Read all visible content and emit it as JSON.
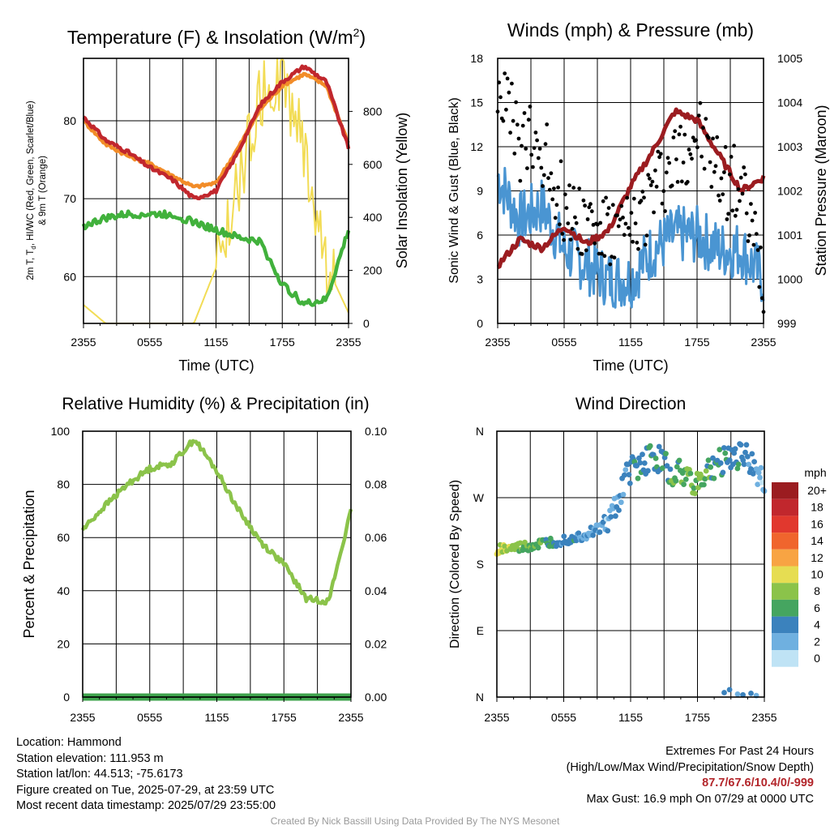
{
  "panels": {
    "temp": {
      "title_main": "Temperature (F) & Insolation (W/m",
      "title_sup": "2",
      "title_end": ")",
      "xlabel": "Time (UTC)",
      "ylabel_left_line1": "2m T, T",
      "ylabel_left_sub": "d",
      "ylabel_left_line1_end": ", HI/WC (Red, Green, Scarlet/Blue)",
      "ylabel_left_line2": "& 9m T (Orange)",
      "ylabel_right": "Solar Insolation (Yellow)",
      "ylim": [
        54,
        88
      ],
      "yticks": [
        "60",
        "70",
        "80"
      ],
      "y2lim": [
        0,
        1000
      ],
      "y2ticks": [
        "0",
        "200",
        "400",
        "600",
        "800"
      ]
    },
    "wind": {
      "title": "Winds (mph) & Pressure (mb)",
      "xlabel": "Time (UTC)",
      "ylabel_left": "Sonic Wind & Gust (Blue, Black)",
      "ylabel_right": "Station Pressure (Maroon)",
      "ylim": [
        0,
        18
      ],
      "yticks": [
        "0",
        "3",
        "6",
        "9",
        "12",
        "15",
        "18"
      ],
      "y2lim": [
        999,
        1005
      ],
      "y2ticks": [
        "999",
        "1000",
        "1001",
        "1002",
        "1003",
        "1004",
        "1005"
      ]
    },
    "rh": {
      "title": "Relative Humidity (%) & Precipitation (in)",
      "ylabel_left": "Percent & Precipitation",
      "ylim": [
        0,
        100
      ],
      "yticks": [
        "0",
        "20",
        "40",
        "60",
        "80",
        "100"
      ],
      "y2ticks": [
        "0.00",
        "0.02",
        "0.04",
        "0.06",
        "0.08",
        "0.10"
      ]
    },
    "wdir": {
      "title": "Wind Direction",
      "ylabel_left": "Direction (Colored By Speed)",
      "yticks": [
        "N",
        "E",
        "S",
        "W",
        "N"
      ],
      "legend_title": "mph",
      "legend_labels": [
        "20+",
        "18",
        "16",
        "14",
        "12",
        "10",
        "8",
        "6",
        "4",
        "2",
        "0"
      ],
      "legend_colors": [
        "#9b1c20",
        "#c1272d",
        "#e1382e",
        "#f0652d",
        "#f8a443",
        "#e6dd52",
        "#8bc34a",
        "#45a560",
        "#3b82bd",
        "#6fb0e0",
        "#bfe3f5"
      ]
    }
  },
  "xticks": [
    "2355",
    "0555",
    "1155",
    "1755",
    "2355"
  ],
  "chart_data": [
    {
      "type": "line",
      "title": "Temperature (F) & Insolation (W/m2)",
      "xlabel": "Time (UTC)",
      "x": [
        "2355",
        "0155",
        "0355",
        "0555",
        "0755",
        "0955",
        "1155",
        "1355",
        "1555",
        "1755",
        "1955",
        "2155",
        "2355"
      ],
      "series": [
        {
          "name": "2m T (Red)",
          "axis": "left",
          "color": "#c1272d",
          "values": [
            80.5,
            77.5,
            76,
            74,
            72.5,
            70,
            71,
            76,
            82,
            85,
            87,
            85,
            76.5
          ]
        },
        {
          "name": "9m T (Orange)",
          "axis": "left",
          "color": "#f28c28",
          "values": [
            80,
            77,
            75.5,
            74.5,
            73,
            71.5,
            72,
            76.5,
            81.5,
            84.5,
            86,
            84.5,
            77
          ]
        },
        {
          "name": "Td (Green)",
          "axis": "left",
          "color": "#41b13c",
          "values": [
            66.5,
            67.5,
            68,
            68,
            68,
            67,
            66,
            65,
            64.5,
            59,
            56.5,
            57,
            66
          ]
        },
        {
          "name": "Solar Insolation (Yellow)",
          "axis": "right",
          "color": "#f2dc55",
          "values": [
            70,
            0,
            0,
            0,
            0,
            0,
            210,
            520,
            850,
            940,
            660,
            220,
            40
          ]
        }
      ],
      "ylim": [
        54,
        88
      ],
      "y2lim": [
        0,
        1000
      ]
    },
    {
      "type": "line",
      "title": "Winds (mph) & Pressure (mb)",
      "xlabel": "Time (UTC)",
      "x": [
        "2355",
        "0155",
        "0355",
        "0555",
        "0755",
        "0955",
        "1155",
        "1355",
        "1555",
        "1755",
        "1955",
        "2155",
        "2355"
      ],
      "series": [
        {
          "name": "Sonic Wind (Blue)",
          "axis": "left",
          "color": "#4a95d2",
          "values": [
            10,
            7,
            8,
            5,
            4,
            3,
            3,
            5,
            6,
            6,
            5,
            5,
            3
          ]
        },
        {
          "name": "Gust (Black)",
          "axis": "left",
          "color": "#000000",
          "values": [
            16.5,
            12,
            12,
            8,
            7,
            6,
            6,
            9,
            11,
            13,
            10,
            9,
            3
          ]
        },
        {
          "name": "Station Pressure (Maroon)",
          "axis": "right",
          "color": "#9b1c20",
          "values": [
            1000.3,
            1000.9,
            1000.7,
            1001.2,
            1000.8,
            1001.1,
            1002.1,
            1002.9,
            1003.8,
            1003.6,
            1002.8,
            1002.0,
            1002.3
          ]
        }
      ],
      "ylim": [
        0,
        18
      ],
      "y2lim": [
        999,
        1005
      ]
    },
    {
      "type": "line",
      "title": "Relative Humidity (%) & Precipitation (in)",
      "x": [
        "2355",
        "0155",
        "0355",
        "0555",
        "0755",
        "0955",
        "1155",
        "1355",
        "1555",
        "1755",
        "1955",
        "2155",
        "2355"
      ],
      "series": [
        {
          "name": "Relative Humidity",
          "axis": "left",
          "color": "#8bc34a",
          "values": [
            63,
            72,
            80,
            86,
            88,
            97,
            85,
            70,
            58,
            50,
            37,
            36,
            70
          ]
        },
        {
          "name": "Precipitation",
          "axis": "right",
          "color": "#2e8b3a",
          "values": [
            0,
            0,
            0,
            0,
            0,
            0,
            0,
            0,
            0,
            0,
            0,
            0,
            0
          ]
        }
      ],
      "ylim": [
        0,
        100
      ],
      "y2lim": [
        0,
        0.1
      ]
    },
    {
      "type": "scatter",
      "title": "Wind Direction",
      "ylabel": "Direction (Colored By Speed)",
      "y_categories": [
        "N",
        "E",
        "S",
        "W",
        "N"
      ],
      "points": [
        {
          "x": "2355",
          "dir_deg": 200,
          "speed": 10
        },
        {
          "x": "0155",
          "dir_deg": 202,
          "speed": 8
        },
        {
          "x": "0355",
          "dir_deg": 207,
          "speed": 6
        },
        {
          "x": "0555",
          "dir_deg": 213,
          "speed": 4
        },
        {
          "x": "0755",
          "dir_deg": 220,
          "speed": 3
        },
        {
          "x": "0955",
          "dir_deg": 235,
          "speed": 2
        },
        {
          "x": "1155",
          "dir_deg": 310,
          "speed": 4
        },
        {
          "x": "1355",
          "dir_deg": 325,
          "speed": 5
        },
        {
          "x": "1555",
          "dir_deg": 305,
          "speed": 6
        },
        {
          "x": "1755",
          "dir_deg": 290,
          "speed": 7
        },
        {
          "x": "1955",
          "dir_deg": 320,
          "speed": 5
        },
        {
          "x": "2155",
          "dir_deg": 330,
          "speed": 4
        },
        {
          "x": "2355",
          "dir_deg": 290,
          "speed": 2
        }
      ]
    }
  ],
  "info": {
    "location": "Location: Hammond",
    "elevation": "Station elevation: 111.953 m",
    "latlon": "Station lat/lon: 44.513; -75.6173",
    "created": "Figure created on Tue, 2025-07-29, at 23:59 UTC",
    "recent": "Most recent data timestamp: 2025/07/29 23:55:00"
  },
  "extremes": {
    "title": "Extremes For Past 24 Hours",
    "subtitle": "(High/Low/Max Wind/Precipitation/Snow Depth)",
    "values": "87.7/67.6/10.4/0/-999",
    "gust": "Max Gust: 16.9 mph On 07/29 at 0000 UTC"
  },
  "credit": "Created By Nick Bassill Using Data Provided By The NYS Mesonet"
}
